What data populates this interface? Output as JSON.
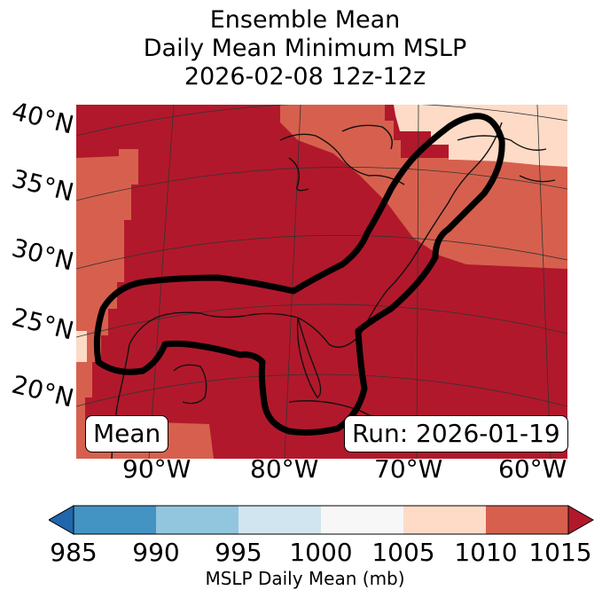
{
  "title": {
    "line1": "Ensemble Mean",
    "line2": "Daily Mean Minimum MSLP",
    "line3": "2026-02-08 12z-12z"
  },
  "map": {
    "lat_labels": [
      "40°N",
      "35°N",
      "30°N",
      "25°N",
      "20°N"
    ],
    "lon_labels": [
      "90°W",
      "80°W",
      "70°W",
      "60°W"
    ],
    "left_box": "Mean",
    "right_box": "Run: 2026-01-19",
    "colors": {
      "above_1010": "#b2182b",
      "range_1005_1010": "#d6604d",
      "range_1000_1005": "#fddbc7",
      "contour": "#000000"
    }
  },
  "colorbar": {
    "ticks": [
      "985",
      "990",
      "995",
      "1000",
      "1005",
      "1010",
      "1015"
    ],
    "colors": [
      "#4393c3",
      "#92c5de",
      "#d1e5f0",
      "#f7f7f7",
      "#fddbc7",
      "#d6604d"
    ],
    "under_color": "#2166ac",
    "over_color": "#b2182b",
    "label": "MSLP Daily Mean (mb)"
  }
}
